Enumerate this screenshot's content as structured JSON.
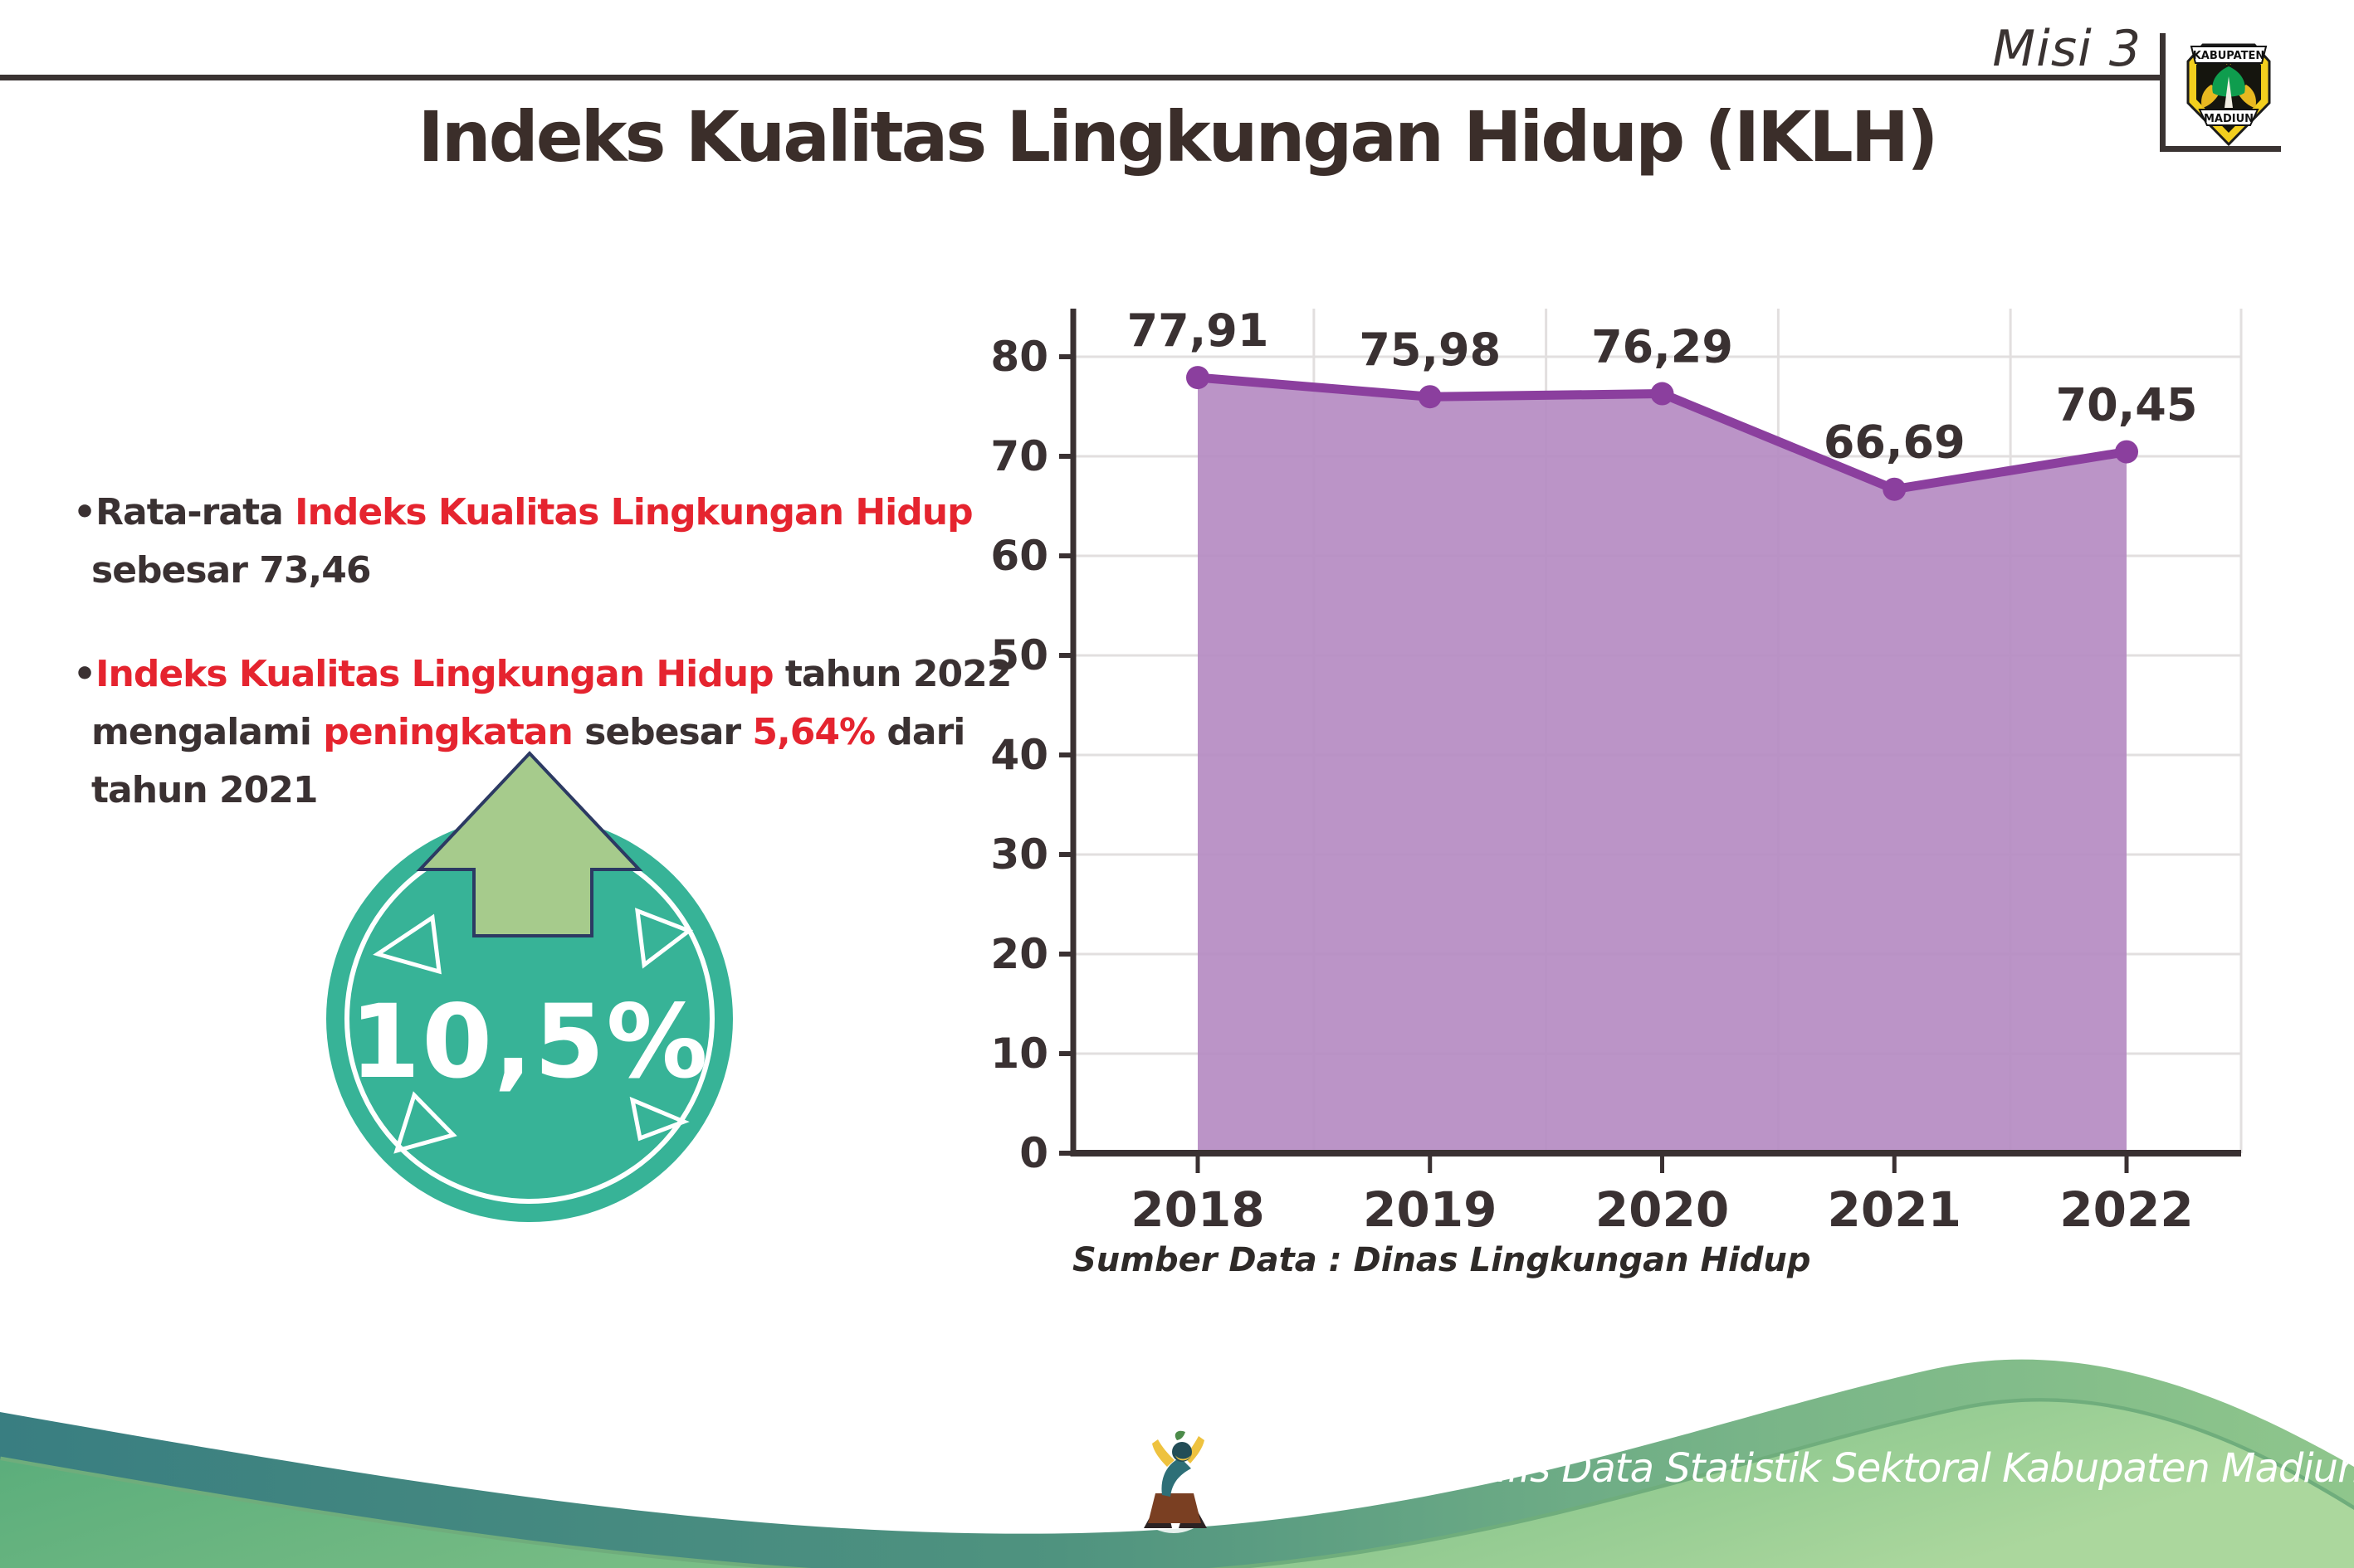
{
  "header": {
    "misi": "Misi 3",
    "title": "Indeks Kualitas Lingkungan Hidup (IKLH)",
    "logo": {
      "top": "KABUPATEN",
      "bottom": "MADIUN"
    }
  },
  "bullets": {
    "glyph": "•",
    "b1_line1_pre": "Rata-rata ",
    "b1_line1_red": "Indeks Kualitas Lingkungan Hidup",
    "b1_line2": "sebesar 73,46",
    "b2_line1_red": "Indeks Kualitas Lingkungan Hidup",
    "b2_line1_post": " tahun 2022",
    "b2_line2_a": "mengalami ",
    "b2_line2_red1": "peningkatan",
    "b2_line2_b": " sebesar ",
    "b2_line2_red2": "5,64%",
    "b2_line2_c": " dari",
    "b2_line3": "tahun 2021"
  },
  "badge": {
    "value": "10,5%"
  },
  "chart_data": {
    "type": "area",
    "categories": [
      "2018",
      "2019",
      "2020",
      "2021",
      "2022"
    ],
    "values": [
      77.91,
      75.98,
      76.29,
      66.69,
      70.45
    ],
    "labels": [
      "77,91",
      "75,98",
      "76,29",
      "66,69",
      "70,45"
    ],
    "title": "",
    "xlabel": "",
    "ylabel": "",
    "ylim": [
      0,
      80
    ],
    "yticks": [
      0,
      10,
      20,
      30,
      40,
      50,
      60,
      70,
      80
    ],
    "grid": true,
    "legend": "none",
    "line_color": "#8b3f9e",
    "fill_color": "#b68cc3"
  },
  "source": "Sumber Data : Dinas Lingkungan Hidup",
  "footer": {
    "text": "Media Infografis Data Statistik Sektoral Kabupaten Madiun |"
  },
  "colors": {
    "text_dark": "#3a3132",
    "accent_red": "#e5242f",
    "purple_line": "#8b3f9e",
    "purple_fill": "#b68cc3",
    "badge_teal": "#37b397",
    "arrow_green": "#a6cb8c",
    "arrow_outline_navy": "#2c3a63",
    "footer_teal": "#397e81",
    "footer_green": "#6eb883",
    "grid_gray": "#e2dfdf"
  }
}
